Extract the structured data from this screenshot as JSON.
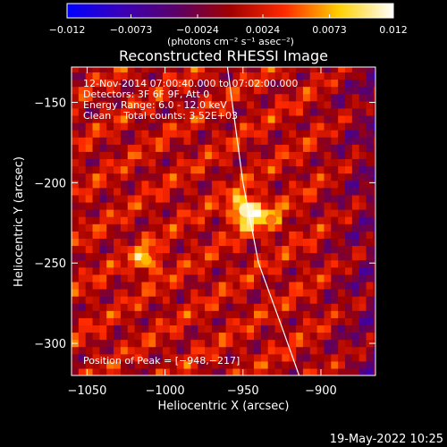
{
  "chart_data": {
    "type": "heatmap",
    "title": "Reconstructed RHESSI Image",
    "xlabel": "Heliocentric X (arcsec)",
    "ylabel": "Heliocentric Y (arcsec)",
    "xlim": [
      -1060,
      -865
    ],
    "ylim": [
      -320,
      -128
    ],
    "xticks": [
      -1050,
      -1000,
      -950,
      -900
    ],
    "xtick_labels": [
      "−1050",
      "−1000",
      "−950",
      "−900"
    ],
    "yticks": [
      -150,
      -200,
      -250,
      -300
    ],
    "ytick_labels": [
      "−150",
      "−200",
      "−250",
      "−300"
    ],
    "colorbar": {
      "min": -0.012,
      "max": 0.012,
      "ticks": [
        -0.012,
        -0.0073,
        -0.0024,
        0.0024,
        0.0073,
        0.012
      ],
      "tick_labels": [
        "−0.012",
        "−0.0073",
        "−0.0024",
        "0.0024",
        "0.0073",
        "0.012"
      ],
      "unit_label": "(photons cm⁻² s⁻¹ asec⁻²)",
      "colormap": [
        "#0000ff",
        "#3a00b8",
        "#5a0068",
        "#a00000",
        "#ff2a00",
        "#ffd000",
        "#ffffff"
      ]
    },
    "annotations": [
      "12-Nov-2014 07:00:40.000 to 07:02:00.000",
      "Detectors: 3F 6F 9F, Att 0",
      "Energy Range: 6.0 - 12.0 keV",
      "Clean    Total counts: 3.52E+03"
    ],
    "peak_label": "Position of Peak = [−948,−217]",
    "peak_position": [
      -948,
      -217
    ],
    "secondary_sources": [
      {
        "x": -1012,
        "y": -248,
        "intensity": 0.0075
      },
      {
        "x": -932,
        "y": -223,
        "intensity": 0.0055
      }
    ],
    "limb_curve": [
      [
        -960,
        -128
      ],
      [
        -950,
        -200
      ],
      [
        -940,
        -250
      ],
      [
        -925,
        -290
      ],
      [
        -914,
        -320
      ]
    ],
    "grid": false
  },
  "footer": {
    "date_stamp": "19-May-2022 10:25"
  }
}
